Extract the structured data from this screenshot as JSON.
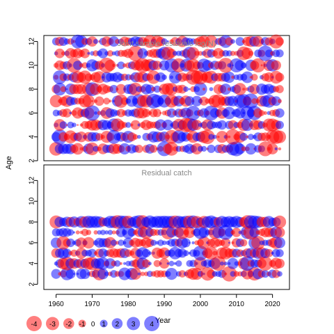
{
  "chart_data": [
    {
      "type": "scatter",
      "title": "Joint sample residuals log(N)",
      "ylabel": "Age",
      "xlabel": "",
      "ylim": [
        2,
        12.5
      ],
      "yticks": [
        2,
        4,
        6,
        8,
        10,
        12
      ],
      "xlim": [
        1956.6,
        2024.7
      ],
      "x": [
        1960,
        2022
      ],
      "y": [
        3,
        12
      ],
      "value_range": [
        -4,
        4
      ],
      "note": "bubble area ~ |residual|; red = negative, blue = positive"
    },
    {
      "type": "scatter",
      "title": "Residual catch",
      "ylabel": "",
      "xlabel": "Year",
      "ylim": [
        1.5,
        13.5
      ],
      "yticks": [
        2,
        4,
        6,
        8,
        10,
        12
      ],
      "xlim": [
        1956.6,
        2024.7
      ],
      "xticks": [
        1960,
        1970,
        1980,
        1990,
        2000,
        2010,
        2020
      ],
      "x": [
        1960,
        2022
      ],
      "y": [
        3,
        8
      ],
      "value_range": [
        -4,
        4
      ]
    }
  ],
  "legend": {
    "values": [
      -4,
      -3,
      -2,
      -1,
      0,
      1,
      2,
      3,
      4
    ],
    "labels": [
      "-4",
      "-3",
      "-2",
      "-1",
      "0",
      "1",
      "2",
      "3",
      "4"
    ]
  },
  "colors": {
    "negative": "#ff0000",
    "positive": "#0000ff",
    "title_text": "#888888",
    "axis": "#000000"
  }
}
